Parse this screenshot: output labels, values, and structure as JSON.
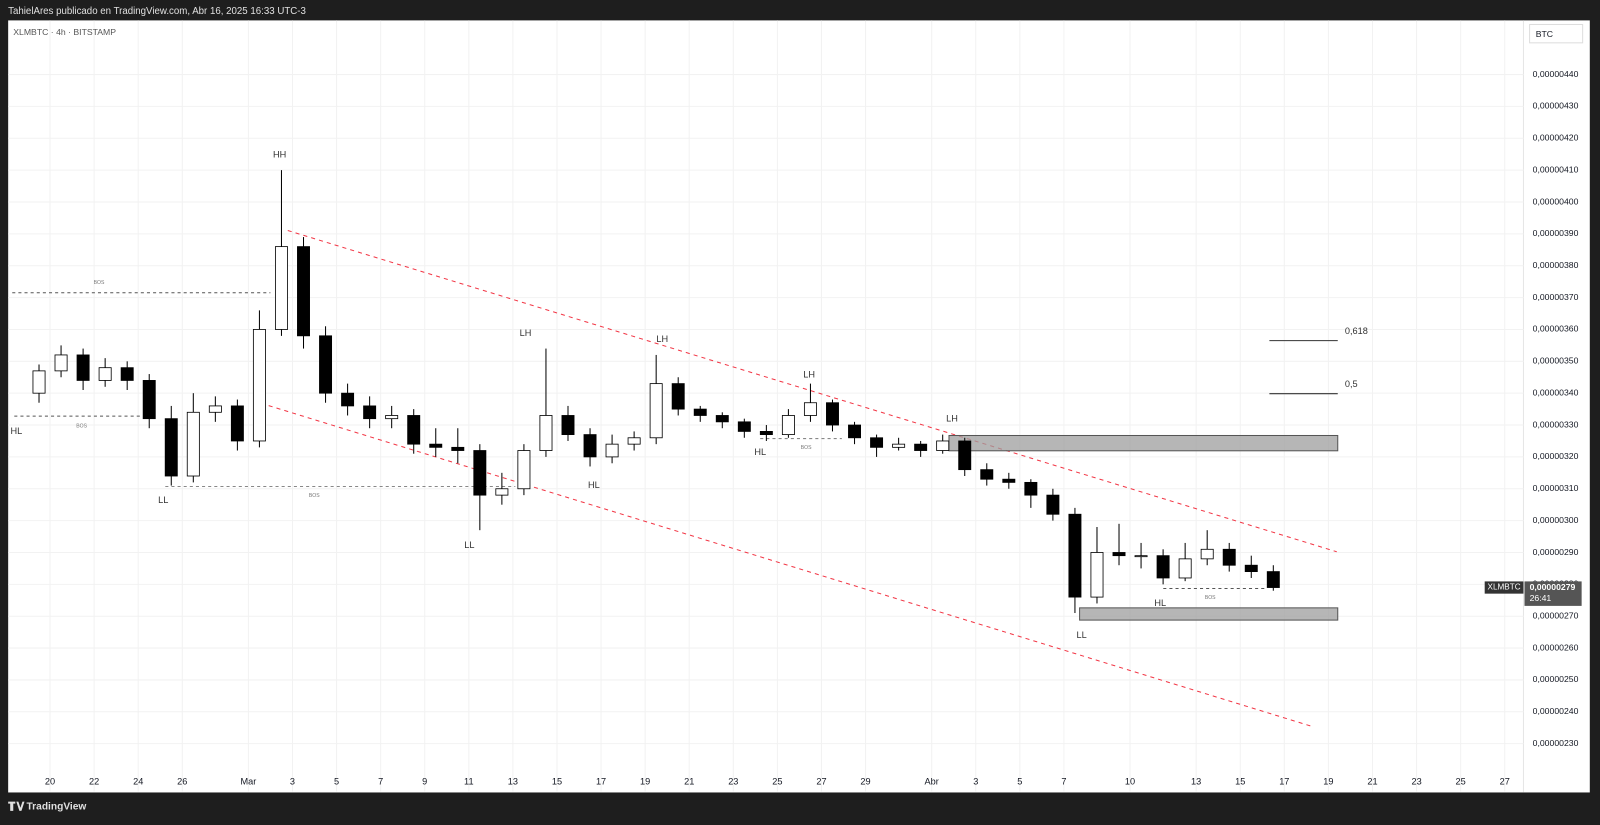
{
  "header": {
    "title": "TahielAres publicado en TradingView.com, Abr 16, 2025 16:33 UTC-3",
    "brand": "TradingView"
  },
  "chart_data": {
    "type": "candlestick",
    "symbol_line": "XLMBTC · 4h · BITSTAMP",
    "currency": "BTC",
    "grid": true,
    "colors": {
      "up": "#ffffff",
      "down": "#000000",
      "outline": "#000000"
    },
    "xlim": [
      -1.9,
      66.85
    ],
    "ylim": [
      2.15e-06,
      4.57e-06
    ],
    "xticks": [
      {
        "value": 0,
        "label": "20"
      },
      {
        "value": 2,
        "label": "22"
      },
      {
        "value": 4,
        "label": "24"
      },
      {
        "value": 6,
        "label": "26"
      },
      {
        "value": 9,
        "label": "Mar"
      },
      {
        "value": 11,
        "label": "3"
      },
      {
        "value": 13,
        "label": "5"
      },
      {
        "value": 15,
        "label": "7"
      },
      {
        "value": 17,
        "label": "9"
      },
      {
        "value": 19,
        "label": "11"
      },
      {
        "value": 21,
        "label": "13"
      },
      {
        "value": 23,
        "label": "15"
      },
      {
        "value": 25,
        "label": "17"
      },
      {
        "value": 27,
        "label": "19"
      },
      {
        "value": 29,
        "label": "21"
      },
      {
        "value": 31,
        "label": "23"
      },
      {
        "value": 33,
        "label": "25"
      },
      {
        "value": 35,
        "label": "27"
      },
      {
        "value": 37,
        "label": "29"
      },
      {
        "value": 40,
        "label": "Abr"
      },
      {
        "value": 42,
        "label": "3"
      },
      {
        "value": 44,
        "label": "5"
      },
      {
        "value": 46,
        "label": "7"
      },
      {
        "value": 49,
        "label": "10"
      },
      {
        "value": 52,
        "label": "13"
      },
      {
        "value": 54,
        "label": "15"
      },
      {
        "value": 56,
        "label": "17"
      },
      {
        "value": 58,
        "label": "19"
      },
      {
        "value": 60,
        "label": "21"
      },
      {
        "value": 62,
        "label": "23"
      },
      {
        "value": 64,
        "label": "25"
      },
      {
        "value": 66,
        "label": "27"
      }
    ],
    "yticks": [
      {
        "value": 2.3e-06,
        "label": "0,00000230"
      },
      {
        "value": 2.4e-06,
        "label": "0,00000240"
      },
      {
        "value": 2.5e-06,
        "label": "0,00000250"
      },
      {
        "value": 2.6e-06,
        "label": "0,00000260"
      },
      {
        "value": 2.7e-06,
        "label": "0,00000270"
      },
      {
        "value": 2.8e-06,
        "label": "0,00000280"
      },
      {
        "value": 2.9e-06,
        "label": "0,00000290"
      },
      {
        "value": 3e-06,
        "label": "0,00000300"
      },
      {
        "value": 3.1e-06,
        "label": "0,00000310"
      },
      {
        "value": 3.2e-06,
        "label": "0,00000320"
      },
      {
        "value": 3.3e-06,
        "label": "0,00000330"
      },
      {
        "value": 3.4e-06,
        "label": "0,00000340"
      },
      {
        "value": 3.5e-06,
        "label": "0,00000350"
      },
      {
        "value": 3.6e-06,
        "label": "0,00000360"
      },
      {
        "value": 3.7e-06,
        "label": "0,00000370"
      },
      {
        "value": 3.8e-06,
        "label": "0,00000380"
      },
      {
        "value": 3.9e-06,
        "label": "0,00000390"
      },
      {
        "value": 4e-06,
        "label": "0,00000400"
      },
      {
        "value": 4.1e-06,
        "label": "0,00000410"
      },
      {
        "value": 4.2e-06,
        "label": "0,00000420"
      },
      {
        "value": 4.3e-06,
        "label": "0,00000430"
      },
      {
        "value": 4.4e-06,
        "label": "0,00000440"
      }
    ],
    "x": [
      -0.5,
      0.5,
      1.5,
      2.5,
      3.5,
      4.5,
      5.5,
      6.5,
      7.5,
      8.5,
      9.5,
      10.5,
      11.5,
      12.5,
      13.5,
      14.5,
      15.5,
      16.5,
      17.5,
      18.5,
      19.5,
      20.5,
      21.5,
      22.5,
      23.5,
      24.5,
      25.5,
      26.5,
      27.5,
      28.5,
      29.5,
      30.5,
      31.5,
      32.5,
      33.5,
      34.5,
      35.5,
      36.5,
      37.5,
      38.5,
      39.5,
      40.5,
      41.5,
      42.5,
      43.5,
      44.5,
      45.5,
      46.5,
      47.5,
      48.5,
      49.5,
      50.5,
      51.5,
      52.5,
      53.5,
      54.5,
      55.5
    ],
    "open": [
      3.4e-06,
      3.47e-06,
      3.52e-06,
      3.44e-06,
      3.48e-06,
      3.44e-06,
      3.32e-06,
      3.14e-06,
      3.34e-06,
      3.36e-06,
      3.25e-06,
      3.6e-06,
      3.86e-06,
      3.58e-06,
      3.4e-06,
      3.36e-06,
      3.32e-06,
      3.33e-06,
      3.24e-06,
      3.23e-06,
      3.22e-06,
      3.08e-06,
      3.1e-06,
      3.22e-06,
      3.33e-06,
      3.27e-06,
      3.2e-06,
      3.24e-06,
      3.26e-06,
      3.43e-06,
      3.35e-06,
      3.33e-06,
      3.31e-06,
      3.28e-06,
      3.27e-06,
      3.33e-06,
      3.37e-06,
      3.3e-06,
      3.26e-06,
      3.23e-06,
      3.24e-06,
      3.22e-06,
      3.25e-06,
      3.16e-06,
      3.13e-06,
      3.12e-06,
      3.08e-06,
      3.02e-06,
      2.76e-06,
      2.9e-06,
      2.89e-06,
      2.89e-06,
      2.82e-06,
      2.88e-06,
      2.91e-06,
      2.86e-06,
      2.84e-06
    ],
    "high": [
      3.49e-06,
      3.55e-06,
      3.54e-06,
      3.51e-06,
      3.5e-06,
      3.46e-06,
      3.36e-06,
      3.4e-06,
      3.39e-06,
      3.38e-06,
      3.66e-06,
      4.1e-06,
      3.89e-06,
      3.61e-06,
      3.43e-06,
      3.39e-06,
      3.36e-06,
      3.35e-06,
      3.29e-06,
      3.29e-06,
      3.24e-06,
      3.15e-06,
      3.24e-06,
      3.54e-06,
      3.36e-06,
      3.29e-06,
      3.27e-06,
      3.28e-06,
      3.52e-06,
      3.45e-06,
      3.36e-06,
      3.34e-06,
      3.32e-06,
      3.3e-06,
      3.35e-06,
      3.43e-06,
      3.38e-06,
      3.31e-06,
      3.27e-06,
      3.26e-06,
      3.25e-06,
      3.27e-06,
      3.26e-06,
      3.18e-06,
      3.15e-06,
      3.13e-06,
      3.1e-06,
      3.04e-06,
      2.98e-06,
      2.99e-06,
      2.93e-06,
      2.91e-06,
      2.93e-06,
      2.97e-06,
      2.93e-06,
      2.89e-06,
      2.86e-06
    ],
    "low": [
      3.37e-06,
      3.45e-06,
      3.41e-06,
      3.42e-06,
      3.41e-06,
      3.29e-06,
      3.11e-06,
      3.12e-06,
      3.31e-06,
      3.22e-06,
      3.23e-06,
      3.58e-06,
      3.54e-06,
      3.37e-06,
      3.33e-06,
      3.29e-06,
      3.29e-06,
      3.21e-06,
      3.2e-06,
      3.18e-06,
      2.97e-06,
      3.05e-06,
      3.08e-06,
      3.2e-06,
      3.25e-06,
      3.17e-06,
      3.18e-06,
      3.22e-06,
      3.24e-06,
      3.33e-06,
      3.31e-06,
      3.29e-06,
      3.26e-06,
      3.25e-06,
      3.26e-06,
      3.31e-06,
      3.28e-06,
      3.24e-06,
      3.2e-06,
      3.22e-06,
      3.2e-06,
      3.21e-06,
      3.14e-06,
      3.11e-06,
      3.1e-06,
      3.04e-06,
      3e-06,
      2.71e-06,
      2.74e-06,
      2.86e-06,
      2.85e-06,
      2.8e-06,
      2.81e-06,
      2.86e-06,
      2.84e-06,
      2.82e-06,
      2.78e-06
    ],
    "close": [
      3.47e-06,
      3.52e-06,
      3.44e-06,
      3.48e-06,
      3.44e-06,
      3.32e-06,
      3.14e-06,
      3.34e-06,
      3.36e-06,
      3.25e-06,
      3.6e-06,
      3.86e-06,
      3.58e-06,
      3.4e-06,
      3.36e-06,
      3.32e-06,
      3.33e-06,
      3.24e-06,
      3.23e-06,
      3.22e-06,
      3.08e-06,
      3.1e-06,
      3.22e-06,
      3.33e-06,
      3.27e-06,
      3.2e-06,
      3.24e-06,
      3.26e-06,
      3.43e-06,
      3.35e-06,
      3.33e-06,
      3.31e-06,
      3.28e-06,
      3.27e-06,
      3.33e-06,
      3.37e-06,
      3.3e-06,
      3.26e-06,
      3.23e-06,
      3.24e-06,
      3.22e-06,
      3.25e-06,
      3.16e-06,
      3.13e-06,
      3.12e-06,
      3.08e-06,
      3.02e-06,
      2.76e-06,
      2.9e-06,
      2.89e-06,
      2.89e-06,
      2.82e-06,
      2.88e-06,
      2.91e-06,
      2.86e-06,
      2.84e-06,
      2.79e-06
    ],
    "price_tag": {
      "symbol": "XLMBTC",
      "value": 2.79e-06,
      "label": "0,00000279",
      "countdown": "26:41"
    },
    "annotations": [
      "HH",
      "LH",
      "LH",
      "LH",
      "LH",
      "HL",
      "LL",
      "LL",
      "HL",
      "HL",
      "HL",
      "LL",
      "BOS",
      "BOS",
      "BOS",
      "BOS",
      "BOS",
      "0,618",
      "0,5"
    ]
  }
}
